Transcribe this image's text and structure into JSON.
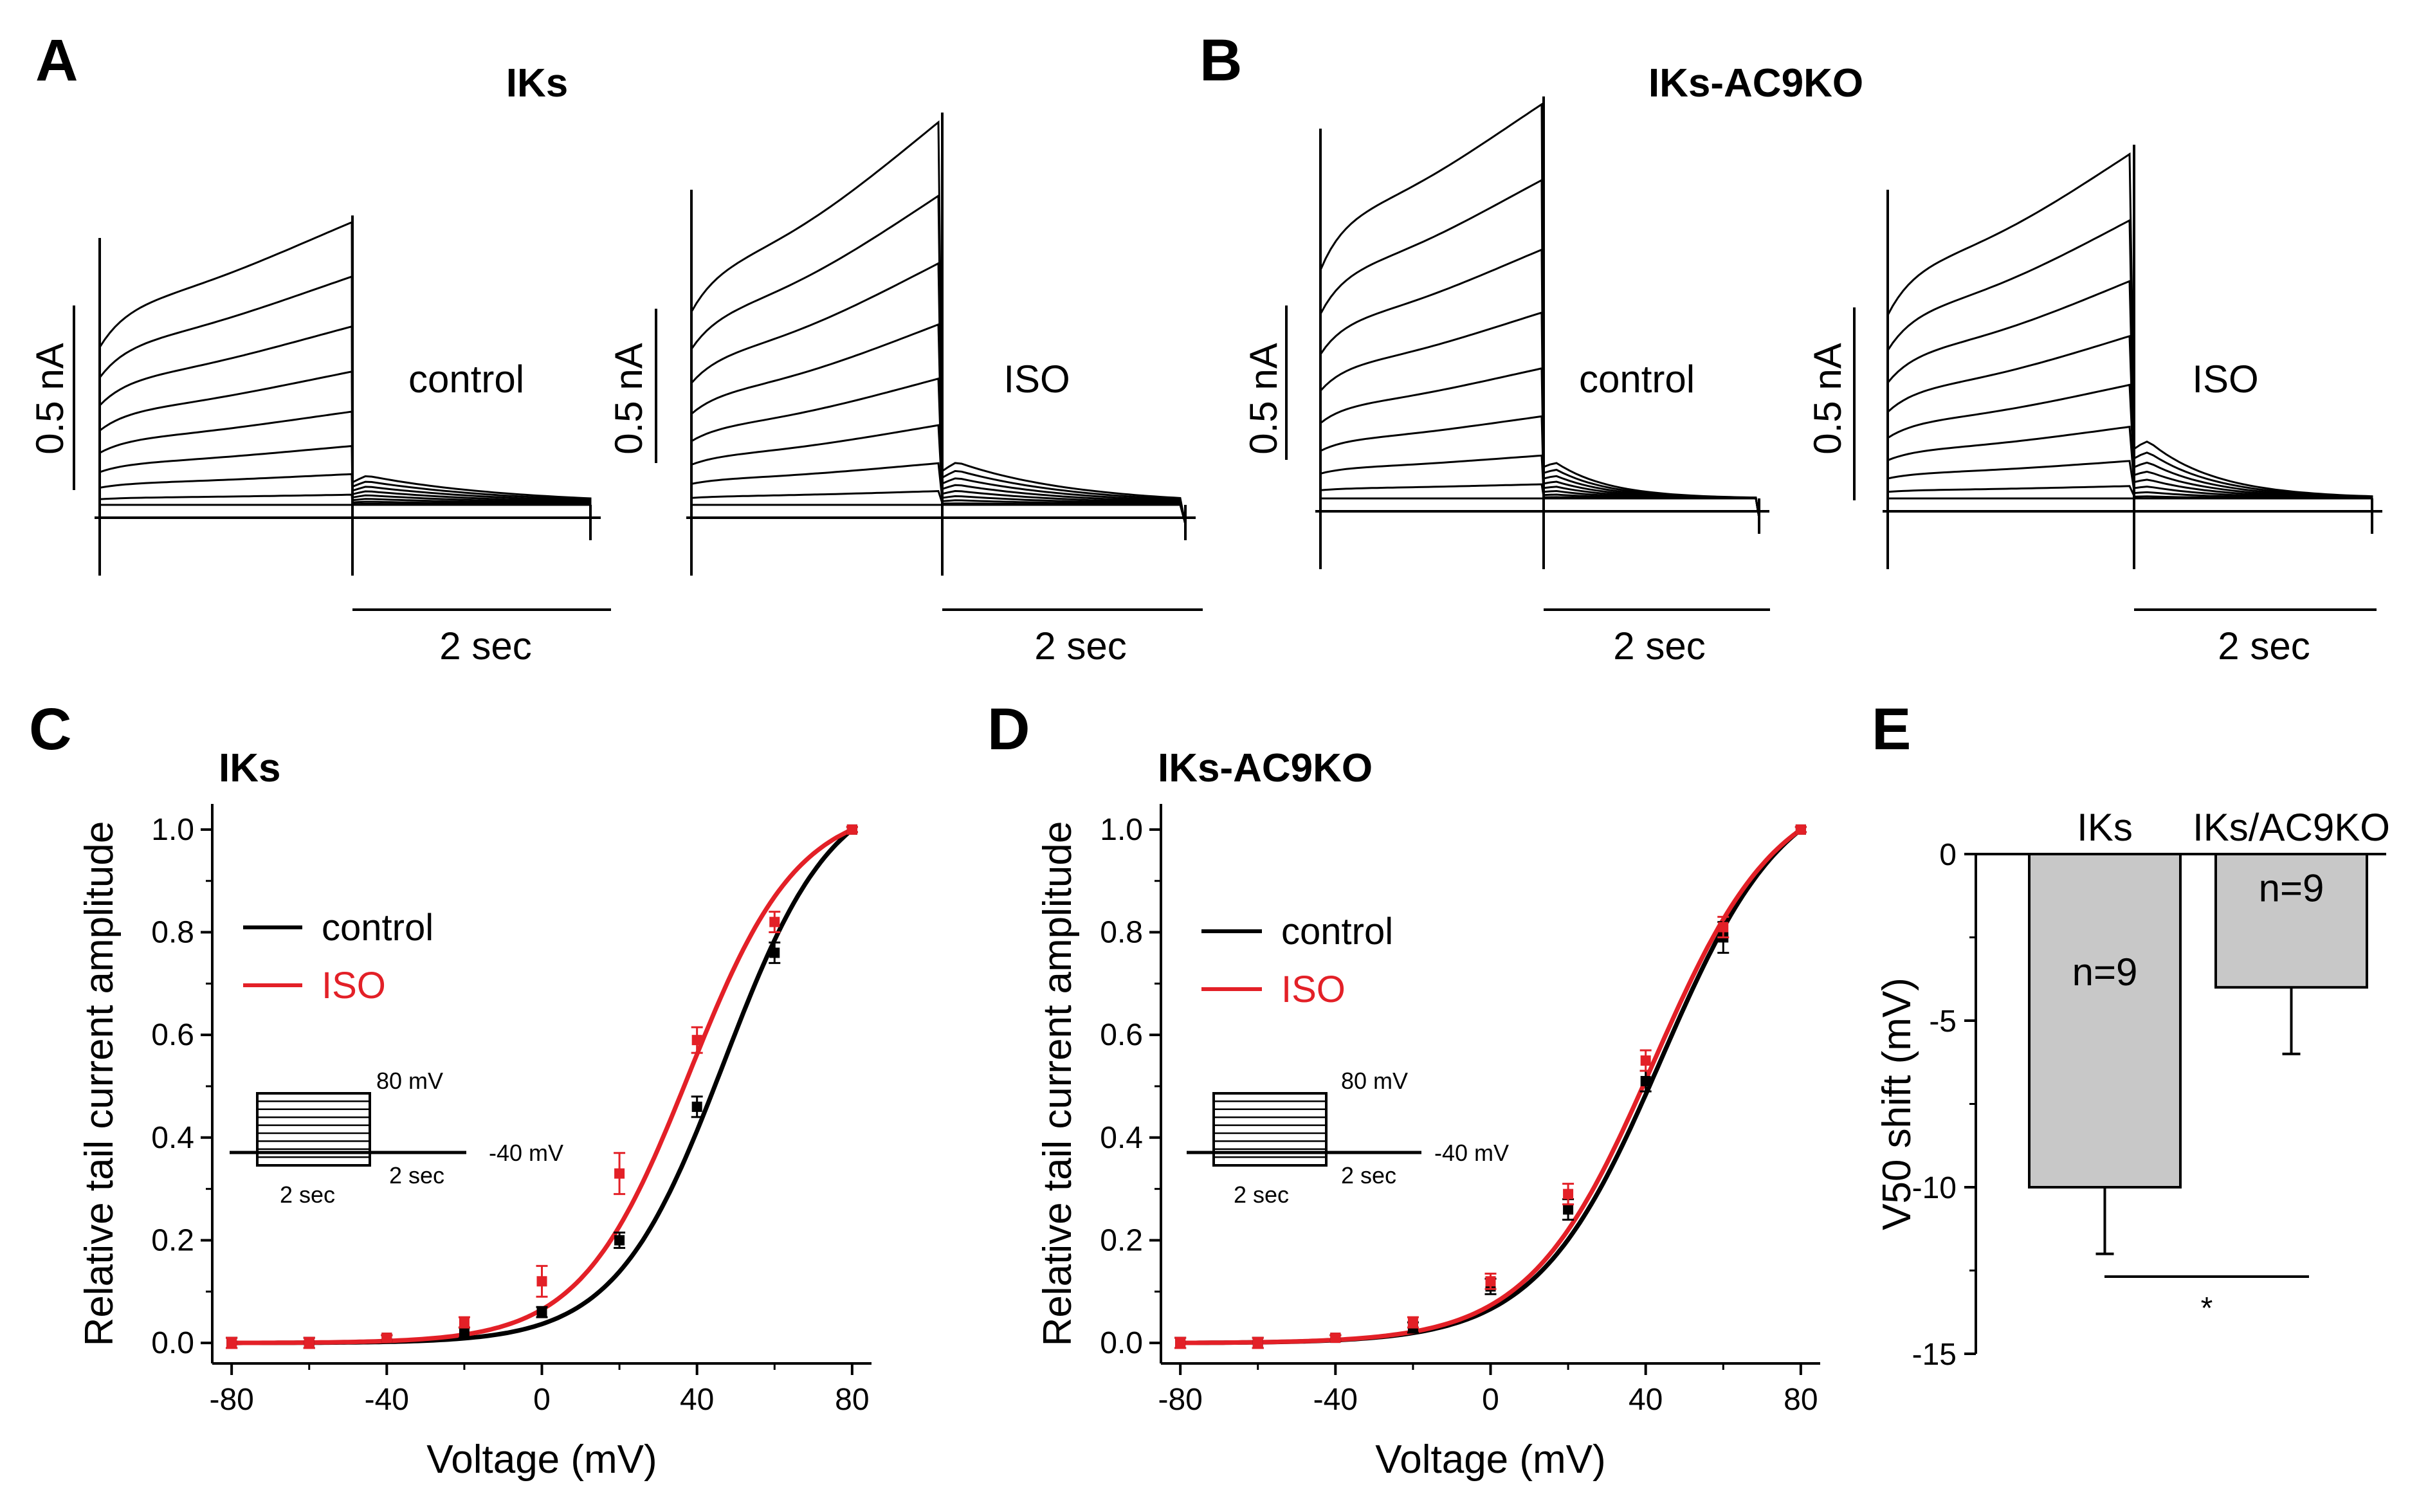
{
  "colors": {
    "control": "#000000",
    "iso": "#e32027",
    "bar_fill": "#c8c8c8",
    "axis": "#000000"
  },
  "panels": {
    "A": {
      "label": "A",
      "title": "IKs",
      "left_label": "control",
      "right_label": "ISO",
      "scale_current": "0.5 nA",
      "scale_time": "2 sec"
    },
    "B": {
      "label": "B",
      "title": "IKs-AC9KO",
      "left_label": "control",
      "right_label": "ISO",
      "scale_current": "0.5 nA",
      "scale_time": "2 sec"
    },
    "C": {
      "label": "C",
      "title": "IKs"
    },
    "D": {
      "label": "D",
      "title": "IKs-AC9KO"
    },
    "E": {
      "label": "E"
    }
  },
  "inset": {
    "step_label": "80 mV",
    "hold_label": "-40 mV",
    "dur1": "2 sec",
    "dur2": "2 sec"
  },
  "chart_data": [
    {
      "panel": "C",
      "type": "line",
      "title": "IKs",
      "xlabel": "Voltage (mV)",
      "ylabel": "Relative tail current amplitude",
      "xlim": [
        -85,
        85
      ],
      "ylim": [
        -0.04,
        1.05
      ],
      "xticks": [
        -80,
        -40,
        0,
        40,
        80
      ],
      "xtick_labels": [
        "-80",
        "-40",
        "0",
        "40",
        "80"
      ],
      "yticks": [
        0.0,
        0.2,
        0.4,
        0.6,
        0.8,
        1.0
      ],
      "ytick_labels": [
        "0.0",
        "0.2",
        "0.4",
        "0.6",
        "0.8",
        "1.0"
      ],
      "legend": [
        "control",
        "ISO"
      ],
      "x": [
        -80,
        -60,
        -40,
        -20,
        0,
        20,
        40,
        60,
        80
      ],
      "series": [
        {
          "name": "control",
          "values": [
            0.0,
            0.0,
            0.01,
            0.02,
            0.06,
            0.2,
            0.46,
            0.76,
            1.0
          ],
          "err": [
            0.01,
            0.01,
            0.005,
            0.01,
            0.01,
            0.015,
            0.02,
            0.02,
            0.005
          ],
          "fit_v50": 47,
          "fit_k": 14
        },
        {
          "name": "ISO",
          "values": [
            0.0,
            0.0,
            0.01,
            0.04,
            0.12,
            0.33,
            0.59,
            0.82,
            1.0
          ],
          "err": [
            0.01,
            0.01,
            0.005,
            0.01,
            0.03,
            0.04,
            0.025,
            0.02,
            0.005
          ],
          "fit_v50": 38,
          "fit_k": 14
        }
      ]
    },
    {
      "panel": "D",
      "type": "line",
      "title": "IKs-AC9KO",
      "xlabel": "Voltage (mV)",
      "ylabel": "Relative tail current amplitude",
      "xlim": [
        -85,
        85
      ],
      "ylim": [
        -0.04,
        1.05
      ],
      "xticks": [
        -80,
        -40,
        0,
        40,
        80
      ],
      "xtick_labels": [
        "-80",
        "-40",
        "0",
        "40",
        "80"
      ],
      "yticks": [
        0.0,
        0.2,
        0.4,
        0.6,
        0.8,
        1.0
      ],
      "ytick_labels": [
        "0.0",
        "0.2",
        "0.4",
        "0.6",
        "0.8",
        "1.0"
      ],
      "legend": [
        "control",
        "ISO"
      ],
      "x": [
        -80,
        -60,
        -40,
        -20,
        0,
        20,
        40,
        60,
        80
      ],
      "series": [
        {
          "name": "control",
          "values": [
            0.0,
            0.0,
            0.01,
            0.03,
            0.11,
            0.26,
            0.51,
            0.79,
            1.0
          ],
          "err": [
            0.01,
            0.01,
            0.005,
            0.01,
            0.015,
            0.02,
            0.02,
            0.03,
            0.005
          ],
          "fit_v50": 44,
          "fit_k": 16
        },
        {
          "name": "ISO",
          "values": [
            0.0,
            0.0,
            0.01,
            0.04,
            0.12,
            0.29,
            0.55,
            0.81,
            1.0
          ],
          "err": [
            0.01,
            0.01,
            0.005,
            0.01,
            0.015,
            0.02,
            0.02,
            0.02,
            0.005
          ],
          "fit_v50": 42,
          "fit_k": 16
        }
      ]
    },
    {
      "panel": "E",
      "type": "bar",
      "ylabel": "V50 shift (mV)",
      "ylim": [
        -15,
        0
      ],
      "yticks": [
        0,
        -5,
        -10,
        -15
      ],
      "ytick_labels": [
        "0",
        "-5",
        "-10",
        "-15"
      ],
      "categories": [
        "IKs",
        "IKs/AC9KO"
      ],
      "values": [
        -10,
        -4
      ],
      "err": [
        2,
        2
      ],
      "n_labels": [
        "n=9",
        "n=9"
      ],
      "significance": "*"
    }
  ]
}
